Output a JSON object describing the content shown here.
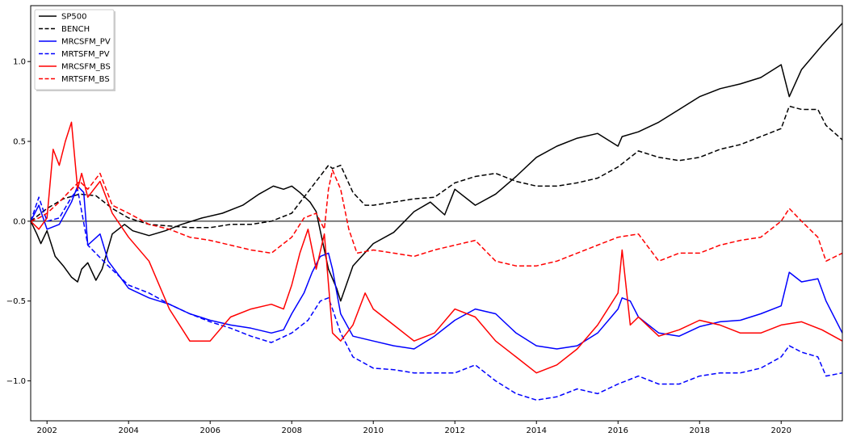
{
  "chart_data": {
    "type": "line",
    "title": "",
    "xlabel": "",
    "ylabel": "",
    "xlim": [
      2001.6,
      2021.5
    ],
    "ylim": [
      -1.25,
      1.35
    ],
    "x_ticks": [
      2002,
      2004,
      2006,
      2008,
      2010,
      2012,
      2014,
      2016,
      2018,
      2020
    ],
    "x_tick_labels": [
      "2002",
      "2004",
      "2006",
      "2008",
      "2010",
      "2012",
      "2014",
      "2016",
      "2018",
      "2020"
    ],
    "y_ticks": [
      -1.0,
      -0.5,
      0.0,
      0.5,
      1.0
    ],
    "y_tick_labels": [
      "−1.0",
      "−0.5",
      "0.0",
      "0.5",
      "1.0"
    ],
    "zero_line": true,
    "grid": false,
    "legend_position": "upper-left",
    "series": [
      {
        "name": "SP500",
        "color": "#000000",
        "dashed": false,
        "x": [
          2001.6,
          2001.75,
          2001.85,
          2002.0,
          2002.2,
          2002.4,
          2002.6,
          2002.75,
          2002.85,
          2003.0,
          2003.2,
          2003.35,
          2003.6,
          2003.9,
          2004.1,
          2004.5,
          2004.9,
          2005.3,
          2005.8,
          2006.3,
          2006.8,
          2007.2,
          2007.55,
          2007.8,
          2008.0,
          2008.2,
          2008.45,
          2008.6,
          2008.75,
          2008.9,
          2009.1,
          2009.2,
          2009.5,
          2010.0,
          2010.5,
          2011.0,
          2011.4,
          2011.75,
          2012.0,
          2012.5,
          2013.0,
          2013.5,
          2014.0,
          2014.5,
          2015.0,
          2015.5,
          2016.0,
          2016.1,
          2016.5,
          2017.0,
          2017.5,
          2018.0,
          2018.5,
          2019.0,
          2019.5,
          2020.0,
          2020.2,
          2020.5,
          2021.0,
          2021.5
        ],
        "values": [
          0.0,
          -0.08,
          -0.14,
          -0.06,
          -0.22,
          -0.28,
          -0.35,
          -0.38,
          -0.3,
          -0.26,
          -0.37,
          -0.3,
          -0.08,
          -0.02,
          -0.06,
          -0.09,
          -0.06,
          -0.02,
          0.02,
          0.05,
          0.1,
          0.17,
          0.22,
          0.2,
          0.22,
          0.18,
          0.12,
          0.06,
          -0.12,
          -0.3,
          -0.42,
          -0.5,
          -0.28,
          -0.14,
          -0.07,
          0.06,
          0.12,
          0.04,
          0.2,
          0.1,
          0.17,
          0.28,
          0.4,
          0.47,
          0.52,
          0.55,
          0.47,
          0.53,
          0.56,
          0.62,
          0.7,
          0.78,
          0.83,
          0.86,
          0.9,
          0.98,
          0.78,
          0.95,
          1.1,
          1.24
        ]
      },
      {
        "name": "BENCH",
        "color": "#000000",
        "dashed": true,
        "x": [
          2001.6,
          2002.0,
          2002.4,
          2002.8,
          2003.2,
          2003.6,
          2004.0,
          2004.5,
          2005.0,
          2005.5,
          2006.0,
          2006.5,
          2007.0,
          2007.5,
          2008.0,
          2008.3,
          2008.6,
          2008.9,
          2009.0,
          2009.2,
          2009.5,
          2009.8,
          2010.0,
          2010.5,
          2011.0,
          2011.5,
          2012.0,
          2012.5,
          2013.0,
          2013.5,
          2014.0,
          2014.5,
          2015.0,
          2015.5,
          2016.0,
          2016.5,
          2017.0,
          2017.5,
          2018.0,
          2018.5,
          2019.0,
          2019.5,
          2020.0,
          2020.2,
          2020.5,
          2020.9,
          2021.1,
          2021.5
        ],
        "values": [
          0.0,
          0.08,
          0.14,
          0.17,
          0.16,
          0.08,
          0.02,
          -0.02,
          -0.03,
          -0.04,
          -0.04,
          -0.02,
          -0.02,
          0.0,
          0.05,
          0.15,
          0.25,
          0.35,
          0.33,
          0.35,
          0.18,
          0.1,
          0.1,
          0.12,
          0.14,
          0.15,
          0.24,
          0.28,
          0.3,
          0.25,
          0.22,
          0.22,
          0.24,
          0.27,
          0.34,
          0.44,
          0.4,
          0.38,
          0.4,
          0.45,
          0.48,
          0.53,
          0.58,
          0.72,
          0.7,
          0.7,
          0.6,
          0.51
        ]
      },
      {
        "name": "MRCSFM_PV",
        "color": "#0000ff",
        "dashed": false,
        "x": [
          2001.6,
          2001.8,
          2002.0,
          2002.3,
          2002.6,
          2002.75,
          2002.9,
          2003.0,
          2003.3,
          2003.5,
          2004.0,
          2004.5,
          2005.0,
          2005.5,
          2006.0,
          2006.5,
          2007.0,
          2007.5,
          2007.8,
          2008.0,
          2008.3,
          2008.5,
          2008.7,
          2008.9,
          2009.0,
          2009.2,
          2009.5,
          2010.0,
          2010.5,
          2011.0,
          2011.5,
          2012.0,
          2012.5,
          2013.0,
          2013.5,
          2014.0,
          2014.5,
          2015.0,
          2015.5,
          2016.0,
          2016.1,
          2016.3,
          2016.5,
          2017.0,
          2017.5,
          2018.0,
          2018.5,
          2019.0,
          2019.5,
          2020.0,
          2020.2,
          2020.5,
          2020.9,
          2021.1,
          2021.5
        ],
        "values": [
          0.0,
          0.1,
          -0.05,
          -0.02,
          0.12,
          0.22,
          0.18,
          -0.15,
          -0.08,
          -0.25,
          -0.42,
          -0.48,
          -0.52,
          -0.58,
          -0.62,
          -0.65,
          -0.67,
          -0.7,
          -0.68,
          -0.58,
          -0.45,
          -0.32,
          -0.22,
          -0.2,
          -0.3,
          -0.58,
          -0.72,
          -0.75,
          -0.78,
          -0.8,
          -0.72,
          -0.62,
          -0.55,
          -0.58,
          -0.7,
          -0.78,
          -0.8,
          -0.78,
          -0.7,
          -0.55,
          -0.48,
          -0.5,
          -0.6,
          -0.7,
          -0.72,
          -0.66,
          -0.63,
          -0.62,
          -0.58,
          -0.53,
          -0.32,
          -0.38,
          -0.36,
          -0.5,
          -0.7
        ]
      },
      {
        "name": "MRTSFM_PV",
        "color": "#0000ff",
        "dashed": true,
        "x": [
          2001.6,
          2001.8,
          2002.0,
          2002.3,
          2002.6,
          2002.75,
          2003.0,
          2003.5,
          2004.0,
          2004.5,
          2005.0,
          2005.5,
          2006.0,
          2006.5,
          2007.0,
          2007.5,
          2008.0,
          2008.4,
          2008.7,
          2008.9,
          2009.0,
          2009.2,
          2009.5,
          2010.0,
          2010.5,
          2011.0,
          2011.5,
          2012.0,
          2012.5,
          2013.0,
          2013.5,
          2014.0,
          2014.5,
          2015.0,
          2015.5,
          2016.0,
          2016.5,
          2017.0,
          2017.5,
          2018.0,
          2018.5,
          2019.0,
          2019.5,
          2020.0,
          2020.2,
          2020.5,
          2020.9,
          2021.1,
          2021.5
        ],
        "values": [
          0.0,
          0.15,
          0.0,
          0.02,
          0.15,
          0.2,
          -0.15,
          -0.28,
          -0.4,
          -0.45,
          -0.52,
          -0.58,
          -0.63,
          -0.67,
          -0.72,
          -0.76,
          -0.7,
          -0.62,
          -0.5,
          -0.48,
          -0.55,
          -0.7,
          -0.85,
          -0.92,
          -0.93,
          -0.95,
          -0.95,
          -0.95,
          -0.9,
          -1.0,
          -1.08,
          -1.12,
          -1.1,
          -1.05,
          -1.08,
          -1.02,
          -0.97,
          -1.02,
          -1.02,
          -0.97,
          -0.95,
          -0.95,
          -0.92,
          -0.85,
          -0.78,
          -0.82,
          -0.85,
          -0.97,
          -0.95
        ]
      },
      {
        "name": "MRCSFM_BS",
        "color": "#ff0000",
        "dashed": false,
        "x": [
          2001.6,
          2001.8,
          2002.0,
          2002.15,
          2002.3,
          2002.45,
          2002.6,
          2002.75,
          2002.85,
          2003.0,
          2003.3,
          2003.6,
          2004.0,
          2004.5,
          2005.0,
          2005.5,
          2006.0,
          2006.5,
          2007.0,
          2007.5,
          2007.8,
          2008.0,
          2008.2,
          2008.4,
          2008.6,
          2008.8,
          2009.0,
          2009.2,
          2009.5,
          2009.8,
          2010.0,
          2010.5,
          2011.0,
          2011.5,
          2012.0,
          2012.5,
          2013.0,
          2013.5,
          2014.0,
          2014.5,
          2015.0,
          2015.5,
          2016.0,
          2016.1,
          2016.3,
          2016.5,
          2017.0,
          2017.5,
          2018.0,
          2018.5,
          2019.0,
          2019.5,
          2020.0,
          2020.5,
          2021.0,
          2021.5
        ],
        "values": [
          0.0,
          -0.05,
          0.02,
          0.45,
          0.35,
          0.5,
          0.62,
          0.2,
          0.3,
          0.15,
          0.25,
          0.05,
          -0.1,
          -0.25,
          -0.55,
          -0.75,
          -0.75,
          -0.6,
          -0.55,
          -0.52,
          -0.55,
          -0.4,
          -0.2,
          -0.05,
          -0.3,
          -0.08,
          -0.7,
          -0.75,
          -0.65,
          -0.45,
          -0.55,
          -0.65,
          -0.75,
          -0.7,
          -0.55,
          -0.6,
          -0.75,
          -0.85,
          -0.95,
          -0.9,
          -0.8,
          -0.65,
          -0.45,
          -0.18,
          -0.65,
          -0.6,
          -0.72,
          -0.68,
          -0.62,
          -0.65,
          -0.7,
          -0.7,
          -0.65,
          -0.63,
          -0.68,
          -0.75
        ]
      },
      {
        "name": "MRTSFM_BS",
        "color": "#ff0000",
        "dashed": true,
        "x": [
          2001.6,
          2001.8,
          2002.0,
          2002.3,
          2002.6,
          2002.8,
          2003.0,
          2003.3,
          2003.6,
          2004.0,
          2004.5,
          2005.0,
          2005.5,
          2006.0,
          2006.5,
          2007.0,
          2007.5,
          2008.0,
          2008.3,
          2008.6,
          2008.8,
          2008.9,
          2009.0,
          2009.2,
          2009.4,
          2009.6,
          2010.0,
          2010.5,
          2011.0,
          2011.5,
          2012.0,
          2012.5,
          2013.0,
          2013.5,
          2014.0,
          2014.5,
          2015.0,
          2015.5,
          2016.0,
          2016.5,
          2017.0,
          2017.5,
          2018.0,
          2018.5,
          2019.0,
          2019.5,
          2020.0,
          2020.2,
          2020.5,
          2020.9,
          2021.1,
          2021.5
        ],
        "values": [
          0.0,
          0.02,
          0.05,
          0.12,
          0.2,
          0.25,
          0.2,
          0.3,
          0.1,
          0.05,
          -0.02,
          -0.05,
          -0.1,
          -0.12,
          -0.15,
          -0.18,
          -0.2,
          -0.1,
          0.02,
          0.05,
          -0.05,
          0.2,
          0.32,
          0.2,
          -0.05,
          -0.2,
          -0.18,
          -0.2,
          -0.22,
          -0.18,
          -0.15,
          -0.12,
          -0.25,
          -0.28,
          -0.28,
          -0.25,
          -0.2,
          -0.15,
          -0.1,
          -0.08,
          -0.25,
          -0.2,
          -0.2,
          -0.15,
          -0.12,
          -0.1,
          0.0,
          0.08,
          0.0,
          -0.1,
          -0.25,
          -0.2
        ]
      }
    ]
  }
}
